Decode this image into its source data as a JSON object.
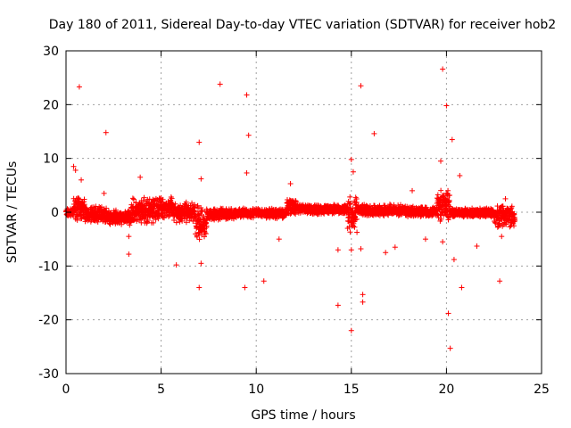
{
  "chart_data": {
    "type": "scatter",
    "title": "Day 180 of 2011, Sidereal Day-to-day VTEC variation (SDTVAR) for receiver hob2",
    "xlabel": "GPS time / hours",
    "ylabel": "SDTVAR / TECUs",
    "xlim": [
      0,
      25
    ],
    "ylim": [
      -30,
      30
    ],
    "xticks": [
      0,
      5,
      10,
      15,
      20,
      25
    ],
    "yticks": [
      -30,
      -20,
      -10,
      0,
      10,
      20,
      30
    ],
    "xtick_labels": [
      "0",
      "5",
      "10",
      "15",
      "20",
      "25"
    ],
    "ytick_labels": [
      "-30",
      "-20",
      "-10",
      "0",
      "10",
      "20",
      "30"
    ],
    "grid": true,
    "marker": "+",
    "color": "#ff0000",
    "bands": [
      {
        "x_start": 0.0,
        "x_end": 0.4,
        "y_low": -1.0,
        "y_high": 0.8
      },
      {
        "x_start": 0.4,
        "x_end": 1.0,
        "y_low": -1.5,
        "y_high": 3.0
      },
      {
        "x_start": 1.0,
        "x_end": 2.2,
        "y_low": -2.0,
        "y_high": 1.2
      },
      {
        "x_start": 2.2,
        "x_end": 3.4,
        "y_low": -2.5,
        "y_high": 0.5
      },
      {
        "x_start": 3.4,
        "x_end": 4.6,
        "y_low": -2.5,
        "y_high": 2.8
      },
      {
        "x_start": 4.6,
        "x_end": 5.6,
        "y_low": -1.5,
        "y_high": 3.0
      },
      {
        "x_start": 5.6,
        "x_end": 6.8,
        "y_low": -2.0,
        "y_high": 2.0
      },
      {
        "x_start": 6.8,
        "x_end": 7.4,
        "y_low": -5.5,
        "y_high": 1.5
      },
      {
        "x_start": 7.4,
        "x_end": 9.0,
        "y_low": -1.5,
        "y_high": 0.8
      },
      {
        "x_start": 9.0,
        "x_end": 11.6,
        "y_low": -1.2,
        "y_high": 0.8
      },
      {
        "x_start": 11.6,
        "x_end": 12.2,
        "y_low": -0.5,
        "y_high": 2.5
      },
      {
        "x_start": 12.2,
        "x_end": 14.8,
        "y_low": -0.5,
        "y_high": 1.5
      },
      {
        "x_start": 14.8,
        "x_end": 15.3,
        "y_low": -4.0,
        "y_high": 3.5
      },
      {
        "x_start": 15.3,
        "x_end": 17.8,
        "y_low": -0.8,
        "y_high": 1.5
      },
      {
        "x_start": 17.8,
        "x_end": 19.5,
        "y_low": -1.0,
        "y_high": 1.2
      },
      {
        "x_start": 19.5,
        "x_end": 20.2,
        "y_low": -2.0,
        "y_high": 4.5
      },
      {
        "x_start": 20.2,
        "x_end": 22.5,
        "y_low": -1.0,
        "y_high": 0.8
      },
      {
        "x_start": 22.5,
        "x_end": 23.6,
        "y_low": -3.0,
        "y_high": 1.5
      }
    ],
    "outliers": [
      {
        "x": 0.4,
        "y": 8.5
      },
      {
        "x": 0.5,
        "y": 7.8
      },
      {
        "x": 0.7,
        "y": 23.3
      },
      {
        "x": 0.8,
        "y": 6.0
      },
      {
        "x": 2.1,
        "y": 14.8
      },
      {
        "x": 2.0,
        "y": 3.5
      },
      {
        "x": 3.3,
        "y": -7.8
      },
      {
        "x": 3.3,
        "y": -4.5
      },
      {
        "x": 3.9,
        "y": 6.5
      },
      {
        "x": 5.8,
        "y": -9.8
      },
      {
        "x": 7.0,
        "y": 13.0
      },
      {
        "x": 7.0,
        "y": -14.0
      },
      {
        "x": 7.1,
        "y": -9.5
      },
      {
        "x": 7.1,
        "y": 6.2
      },
      {
        "x": 8.1,
        "y": 23.8
      },
      {
        "x": 9.4,
        "y": -14.0
      },
      {
        "x": 9.5,
        "y": 21.8
      },
      {
        "x": 9.6,
        "y": 14.3
      },
      {
        "x": 9.5,
        "y": 7.3
      },
      {
        "x": 10.4,
        "y": -12.8
      },
      {
        "x": 11.2,
        "y": -5.0
      },
      {
        "x": 11.8,
        "y": 5.3
      },
      {
        "x": 14.3,
        "y": -17.3
      },
      {
        "x": 14.3,
        "y": -7.0
      },
      {
        "x": 15.0,
        "y": -22.0
      },
      {
        "x": 15.0,
        "y": 9.8
      },
      {
        "x": 15.1,
        "y": 7.5
      },
      {
        "x": 15.0,
        "y": -7.0
      },
      {
        "x": 15.5,
        "y": 23.5
      },
      {
        "x": 15.6,
        "y": -15.3
      },
      {
        "x": 15.6,
        "y": -16.7
      },
      {
        "x": 15.5,
        "y": -6.8
      },
      {
        "x": 16.2,
        "y": 14.6
      },
      {
        "x": 16.8,
        "y": -7.5
      },
      {
        "x": 17.3,
        "y": -6.5
      },
      {
        "x": 18.2,
        "y": 4.0
      },
      {
        "x": 18.9,
        "y": -5.0
      },
      {
        "x": 19.8,
        "y": 26.6
      },
      {
        "x": 20.0,
        "y": 19.8
      },
      {
        "x": 19.7,
        "y": 9.5
      },
      {
        "x": 19.8,
        "y": -5.5
      },
      {
        "x": 20.1,
        "y": -18.8
      },
      {
        "x": 20.2,
        "y": -25.3
      },
      {
        "x": 20.3,
        "y": 13.5
      },
      {
        "x": 20.4,
        "y": -8.8
      },
      {
        "x": 20.7,
        "y": 6.8
      },
      {
        "x": 20.8,
        "y": -14.0
      },
      {
        "x": 21.6,
        "y": -6.3
      },
      {
        "x": 22.8,
        "y": -12.8
      },
      {
        "x": 23.1,
        "y": 2.5
      },
      {
        "x": 22.9,
        "y": -4.5
      }
    ]
  }
}
